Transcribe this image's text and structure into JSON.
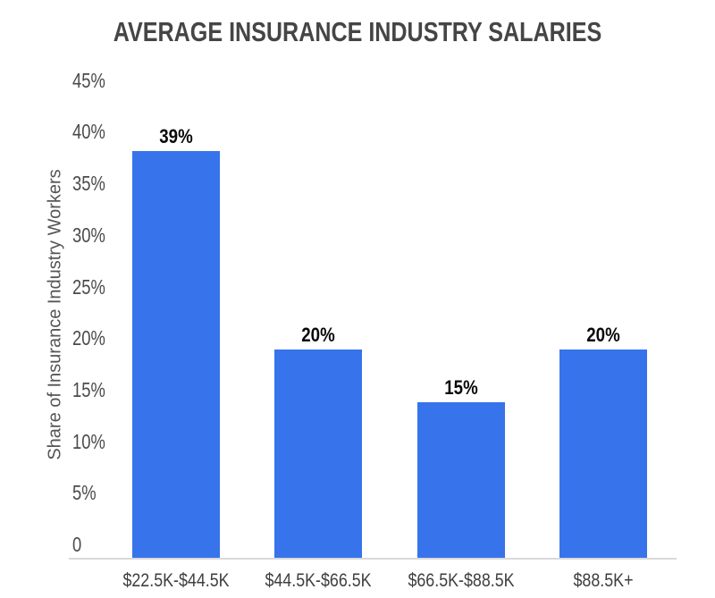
{
  "chart_data": {
    "type": "bar",
    "title": "AVERAGE INSURANCE INDUSTRY SALARIES",
    "categories": [
      "$22.5K-$44.5K",
      "$44.5K-$66.5K",
      "$66.5K-$88.5K",
      "$88.5K+"
    ],
    "values": [
      39,
      20,
      15,
      20
    ],
    "data_labels": [
      "39%",
      "20%",
      "15%",
      "20%"
    ],
    "xlabel": "",
    "ylabel": "Share of Insurance Industry Workers",
    "ylim": [
      0,
      45
    ],
    "ytick_labels": [
      "0",
      "5%",
      "10%",
      "15%",
      "20%",
      "25%",
      "30%",
      "35%",
      "40%",
      "45%"
    ],
    "grid": false,
    "legend": "none"
  },
  "colors": {
    "bar": "#3773EB",
    "title_text": "#454545",
    "axis_text": "#4a4a4a",
    "data_label_text": "#0a0a0a",
    "axis_line": "#d9d9d9",
    "background": "#ffffff"
  }
}
